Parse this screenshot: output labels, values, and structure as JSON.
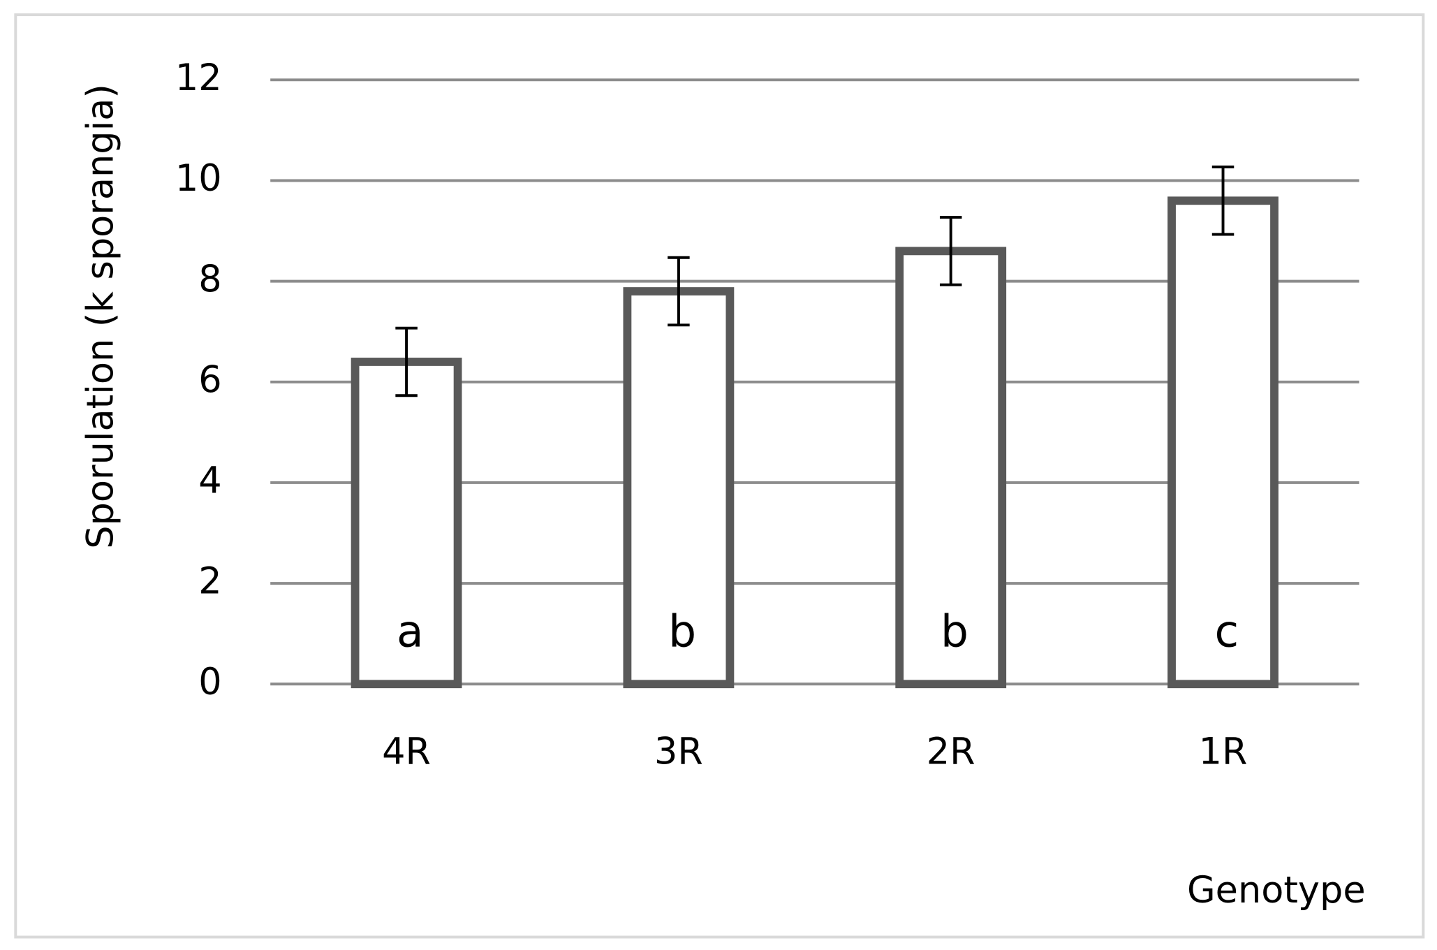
{
  "chart_data": {
    "type": "bar",
    "x_label": "Genotype",
    "y_label": "Sporulation (k sporangia)",
    "categories": [
      "4R",
      "3R",
      "2R",
      "1R"
    ],
    "values": [
      6.4,
      7.8,
      8.6,
      9.6
    ],
    "errors": [
      0.67,
      0.67,
      0.67,
      0.67
    ],
    "annotations": [
      "a",
      "b",
      "b",
      "c"
    ],
    "color": "#595959",
    "ylim": [
      0,
      12
    ],
    "yticks": [
      0,
      2,
      4,
      6,
      8,
      10,
      12
    ],
    "grid": true
  }
}
